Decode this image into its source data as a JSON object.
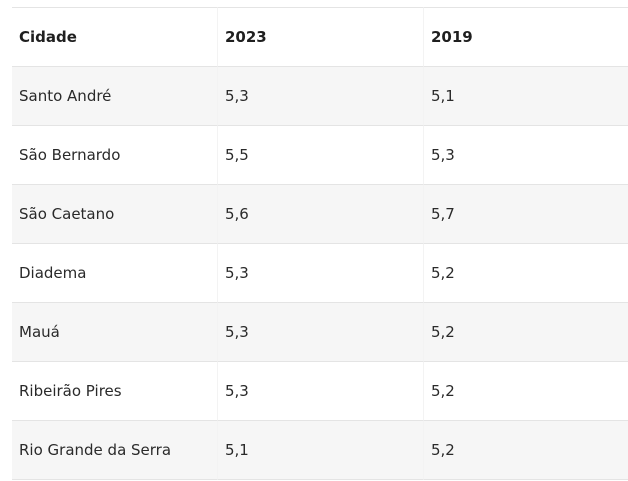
{
  "table": {
    "headers": [
      "Cidade",
      "2023",
      "2019"
    ],
    "rows": [
      [
        "Santo André",
        "5,3",
        "5,1"
      ],
      [
        "São Bernardo",
        "5,5",
        "5,3"
      ],
      [
        "São Caetano",
        "5,6",
        "5,7"
      ],
      [
        "Diadema",
        "5,3",
        "5,2"
      ],
      [
        "Mauá",
        "5,3",
        "5,2"
      ],
      [
        "Ribeirão Pires",
        "5,3",
        "5,2"
      ],
      [
        "Rio Grande da Serra",
        "5,1",
        "5,2"
      ]
    ]
  }
}
